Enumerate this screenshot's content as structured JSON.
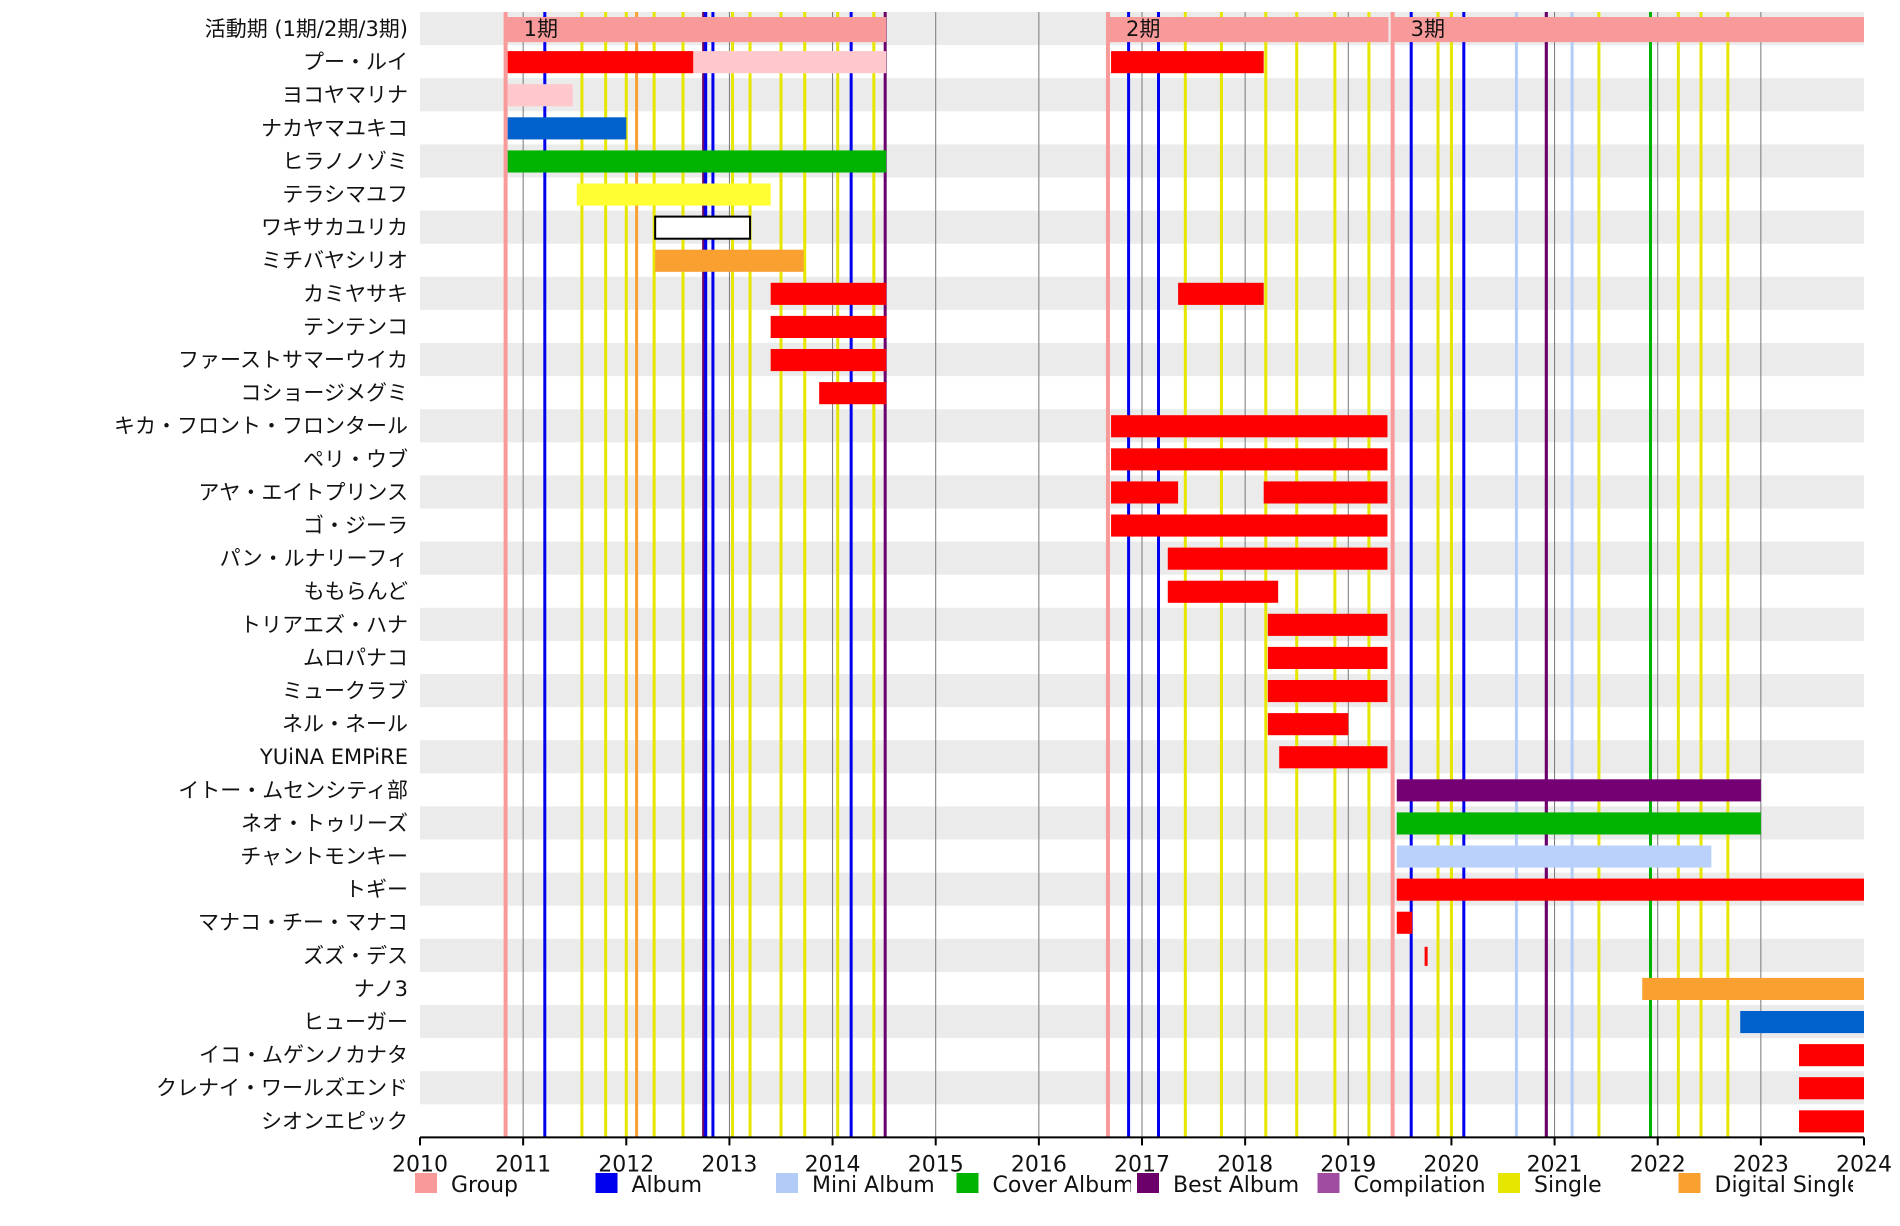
{
  "chart_data": {
    "type": "timeline",
    "title": "",
    "x_axis": {
      "range": [
        2010,
        2024
      ],
      "ticks": [
        "2010",
        "2011",
        "2012",
        "2013",
        "2014",
        "2015",
        "2016",
        "2017",
        "2018",
        "2019",
        "2020",
        "2021",
        "2022",
        "2023",
        "2024"
      ]
    },
    "colors": {
      "Group": "#f99a9a",
      "Album": "#0000ee",
      "Mini Album": "#b3ccf7",
      "Cover Album": "#00b300",
      "Best Album": "#6b006b",
      "Compilation Album": "#a04ca0",
      "Single": "#e6e600",
      "Digital Single": "#f9a030",
      "member_red": "#ff0000",
      "member_pink": "#ffc8cc",
      "member_blue": "#0060cc",
      "member_green": "#00b300",
      "member_yellow": "#ffff33",
      "member_orange": "#f9a030",
      "member_purple": "#740074",
      "member_lightblue": "#bad1fb",
      "member_white": "#ffffff"
    },
    "legend": [
      {
        "label": "Group",
        "color": "#f99a9a"
      },
      {
        "label": "Album",
        "color": "#0000ee"
      },
      {
        "label": "Mini Album",
        "color": "#b3ccf7"
      },
      {
        "label": "Cover Album",
        "color": "#00b300"
      },
      {
        "label": "Best Album",
        "color": "#6b006b"
      },
      {
        "label": "Compilation Album",
        "color": "#a04ca0"
      },
      {
        "label": "Single",
        "color": "#e6e600"
      },
      {
        "label": "Digital Single",
        "color": "#f9a030"
      }
    ],
    "periods": [
      {
        "label": "1期",
        "start": 2010.83,
        "end": 2014.52
      },
      {
        "label": "2期",
        "start": 2016.67,
        "end": 2019.39
      },
      {
        "label": "3期",
        "start": 2019.43,
        "end": 2024.0
      }
    ],
    "group_row_label": "活動期 (1期/2期/3期)",
    "releases": [
      {
        "type": "Album",
        "x": 2011.21
      },
      {
        "type": "Album",
        "x": 2012.77
      },
      {
        "type": "Album",
        "x": 2012.84
      },
      {
        "type": "Album",
        "x": 2014.18
      },
      {
        "type": "Album",
        "x": 2016.87
      },
      {
        "type": "Album",
        "x": 2017.16
      },
      {
        "type": "Album",
        "x": 2019.61
      },
      {
        "type": "Album",
        "x": 2020.12
      },
      {
        "type": "Mini Album",
        "x": 2020.63
      },
      {
        "type": "Mini Album",
        "x": 2021.17
      },
      {
        "type": "Cover Album",
        "x": 2021.93
      },
      {
        "type": "Best Album",
        "x": 2012.75
      },
      {
        "type": "Best Album",
        "x": 2014.51
      },
      {
        "type": "Best Album",
        "x": 2020.92
      },
      {
        "type": "Compilation Album",
        "x": 2020.92
      },
      {
        "type": "Single",
        "x": 2011.57
      },
      {
        "type": "Single",
        "x": 2011.8
      },
      {
        "type": "Single",
        "x": 2012.0
      },
      {
        "type": "Single",
        "x": 2012.27
      },
      {
        "type": "Single",
        "x": 2012.55
      },
      {
        "type": "Single",
        "x": 2013.03
      },
      {
        "type": "Single",
        "x": 2013.2
      },
      {
        "type": "Single",
        "x": 2013.5
      },
      {
        "type": "Single",
        "x": 2013.73
      },
      {
        "type": "Single",
        "x": 2014.05
      },
      {
        "type": "Single",
        "x": 2014.4
      },
      {
        "type": "Single",
        "x": 2017.42
      },
      {
        "type": "Single",
        "x": 2017.77
      },
      {
        "type": "Single",
        "x": 2018.2
      },
      {
        "type": "Single",
        "x": 2018.5
      },
      {
        "type": "Single",
        "x": 2018.87
      },
      {
        "type": "Single",
        "x": 2019.2
      },
      {
        "type": "Single",
        "x": 2019.87
      },
      {
        "type": "Single",
        "x": 2020.0
      },
      {
        "type": "Single",
        "x": 2021.43
      },
      {
        "type": "Single",
        "x": 2022.2
      },
      {
        "type": "Single",
        "x": 2022.42
      },
      {
        "type": "Single",
        "x": 2022.68
      },
      {
        "type": "Digital Single",
        "x": 2012.1
      }
    ],
    "members": [
      {
        "name": "プー・ルイ",
        "bars": [
          {
            "start": 2010.85,
            "end": 2012.65,
            "color": "#ff0000"
          },
          {
            "start": 2012.65,
            "end": 2014.52,
            "color": "#ffc8cc"
          },
          {
            "start": 2016.7,
            "end": 2018.18,
            "color": "#ff0000"
          }
        ]
      },
      {
        "name": "ヨコヤマリナ",
        "bars": [
          {
            "start": 2010.85,
            "end": 2011.48,
            "color": "#ffc8cc"
          }
        ]
      },
      {
        "name": "ナカヤマユキコ",
        "bars": [
          {
            "start": 2010.85,
            "end": 2012.0,
            "color": "#0060cc"
          }
        ]
      },
      {
        "name": "ヒラノノゾミ",
        "bars": [
          {
            "start": 2010.85,
            "end": 2014.52,
            "color": "#00b300"
          }
        ]
      },
      {
        "name": "テラシマユフ",
        "bars": [
          {
            "start": 2011.52,
            "end": 2013.4,
            "color": "#ffff33"
          }
        ]
      },
      {
        "name": "ワキサカユリカ",
        "bars": [
          {
            "start": 2012.28,
            "end": 2013.2,
            "color": "#ffffff",
            "outline": true
          }
        ]
      },
      {
        "name": "ミチバヤシリオ",
        "bars": [
          {
            "start": 2012.28,
            "end": 2013.72,
            "color": "#f9a030"
          }
        ]
      },
      {
        "name": "カミヤサキ",
        "bars": [
          {
            "start": 2013.4,
            "end": 2014.52,
            "color": "#ff0000"
          },
          {
            "start": 2017.35,
            "end": 2018.18,
            "color": "#ff0000"
          }
        ]
      },
      {
        "name": "テンテンコ",
        "bars": [
          {
            "start": 2013.4,
            "end": 2014.52,
            "color": "#ff0000"
          }
        ]
      },
      {
        "name": "ファーストサマーウイカ",
        "bars": [
          {
            "start": 2013.4,
            "end": 2014.52,
            "color": "#ff0000"
          }
        ]
      },
      {
        "name": "コショージメグミ",
        "bars": [
          {
            "start": 2013.87,
            "end": 2014.52,
            "color": "#ff0000"
          }
        ]
      },
      {
        "name": "キカ・フロント・フロンタール",
        "bars": [
          {
            "start": 2016.7,
            "end": 2019.38,
            "color": "#ff0000"
          }
        ]
      },
      {
        "name": "ペリ・ウブ",
        "bars": [
          {
            "start": 2016.7,
            "end": 2019.38,
            "color": "#ff0000"
          }
        ]
      },
      {
        "name": "アヤ・エイトプリンス",
        "bars": [
          {
            "start": 2016.7,
            "end": 2017.35,
            "color": "#ff0000"
          },
          {
            "start": 2018.18,
            "end": 2019.38,
            "color": "#ff0000"
          }
        ]
      },
      {
        "name": "ゴ・ジーラ",
        "bars": [
          {
            "start": 2016.7,
            "end": 2019.38,
            "color": "#ff0000"
          }
        ]
      },
      {
        "name": "パン・ルナリーフィ",
        "bars": [
          {
            "start": 2017.25,
            "end": 2019.38,
            "color": "#ff0000"
          }
        ]
      },
      {
        "name": "ももらんど",
        "bars": [
          {
            "start": 2017.25,
            "end": 2018.32,
            "color": "#ff0000"
          }
        ]
      },
      {
        "name": "トリアエズ・ハナ",
        "bars": [
          {
            "start": 2018.22,
            "end": 2019.38,
            "color": "#ff0000"
          }
        ]
      },
      {
        "name": "ムロパナコ",
        "bars": [
          {
            "start": 2018.22,
            "end": 2019.38,
            "color": "#ff0000"
          }
        ]
      },
      {
        "name": "ミュークラブ",
        "bars": [
          {
            "start": 2018.22,
            "end": 2019.38,
            "color": "#ff0000"
          }
        ]
      },
      {
        "name": "ネル・ネール",
        "bars": [
          {
            "start": 2018.22,
            "end": 2019.0,
            "color": "#ff0000"
          }
        ]
      },
      {
        "name": "YUiNA EMPiRE",
        "bars": [
          {
            "start": 2018.33,
            "end": 2019.38,
            "color": "#ff0000"
          }
        ]
      },
      {
        "name": "イトー・ムセンシティ部",
        "bars": [
          {
            "start": 2019.47,
            "end": 2023.0,
            "color": "#740074"
          }
        ]
      },
      {
        "name": "ネオ・トゥリーズ",
        "bars": [
          {
            "start": 2019.47,
            "end": 2023.0,
            "color": "#00b300"
          }
        ]
      },
      {
        "name": "チャントモンキー",
        "bars": [
          {
            "start": 2019.47,
            "end": 2022.52,
            "color": "#bad1fb"
          }
        ]
      },
      {
        "name": "トギー",
        "bars": [
          {
            "start": 2019.47,
            "end": 2024.0,
            "color": "#ff0000"
          }
        ]
      },
      {
        "name": "マナコ・チー・マナコ",
        "bars": [
          {
            "start": 2019.47,
            "end": 2019.62,
            "color": "#ff0000"
          }
        ]
      },
      {
        "name": "ズズ・デス",
        "bars": [
          {
            "start": 2019.74,
            "end": 2019.77,
            "color": "#ff0000",
            "thin": true
          }
        ]
      },
      {
        "name": "ナノ3",
        "bars": [
          {
            "start": 2021.85,
            "end": 2024.0,
            "color": "#f9a030"
          }
        ]
      },
      {
        "name": "ヒューガー",
        "bars": [
          {
            "start": 2022.8,
            "end": 2024.0,
            "color": "#0060cc"
          }
        ]
      },
      {
        "name": "イコ・ムゲンノカナタ",
        "bars": [
          {
            "start": 2023.37,
            "end": 2024.0,
            "color": "#ff0000"
          }
        ]
      },
      {
        "name": "クレナイ・ワールズエンド",
        "bars": [
          {
            "start": 2023.37,
            "end": 2024.0,
            "color": "#ff0000"
          }
        ]
      },
      {
        "name": "シオンエピック",
        "bars": [
          {
            "start": 2023.37,
            "end": 2024.0,
            "color": "#ff0000"
          }
        ]
      }
    ]
  }
}
